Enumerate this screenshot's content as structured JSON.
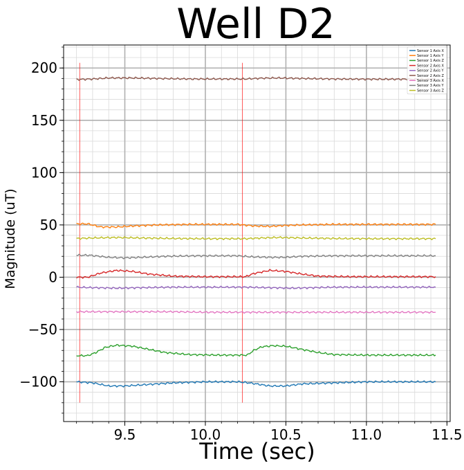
{
  "chart_data": {
    "type": "line",
    "title": "Well D2",
    "xlabel": "Time (sec)",
    "ylabel": "Magnitude (uT)",
    "xlim": [
      9.12,
      11.52
    ],
    "ylim": [
      -138,
      222
    ],
    "x_ticks": [
      9.5,
      10.0,
      10.5,
      11.0,
      11.5
    ],
    "x_tick_labels": [
      "9.5",
      "10.0",
      "10.5",
      "11.0",
      "11.5"
    ],
    "y_ticks": [
      -100,
      -50,
      0,
      50,
      100,
      150,
      200
    ],
    "y_tick_labels": [
      "−100",
      "−50",
      "0",
      "50",
      "100",
      "150",
      "200"
    ],
    "grid": true,
    "legend_position": "top-right",
    "vlines": [
      {
        "x": 9.22,
        "ymin": -120,
        "ymax": 205,
        "color": "#ff0000"
      },
      {
        "x": 10.23,
        "ymin": -120,
        "ymax": 205,
        "color": "#ff0000"
      }
    ],
    "series": [
      {
        "name": "Sensor 1 Axis X",
        "color": "#1f77b4",
        "x": [
          9.2,
          9.3,
          9.4,
          9.5,
          9.6,
          9.8,
          10.0,
          10.2,
          10.27,
          10.4,
          10.5,
          10.6,
          10.8,
          11.0,
          11.2,
          11.43
        ],
        "y": [
          -100,
          -101,
          -104,
          -104,
          -103,
          -101,
          -100,
          -100,
          -101,
          -104,
          -104,
          -102,
          -101,
          -100,
          -100,
          -100
        ]
      },
      {
        "name": "Sensor 1 Axis Y",
        "color": "#ff7f0e",
        "x": [
          9.2,
          9.27,
          9.35,
          9.45,
          9.55,
          9.7,
          9.9,
          10.2,
          10.3,
          10.4,
          10.5,
          10.6,
          10.8,
          11.0,
          11.2,
          11.43
        ],
        "y": [
          51,
          51,
          48,
          48,
          49,
          50,
          50.5,
          50.5,
          49,
          48.5,
          49.5,
          50,
          50.5,
          50.5,
          50.5,
          50.5
        ]
      },
      {
        "name": "Sensor 1 Axis Z",
        "color": "#2ca02c",
        "x": [
          9.2,
          9.27,
          9.32,
          9.38,
          9.45,
          9.55,
          9.65,
          9.75,
          9.9,
          10.1,
          10.26,
          10.3,
          10.35,
          10.42,
          10.5,
          10.6,
          10.7,
          10.8,
          11.0,
          11.2,
          11.43
        ],
        "y": [
          -75,
          -75,
          -72,
          -67,
          -65,
          -66,
          -69,
          -72,
          -74,
          -74.5,
          -74.5,
          -70,
          -66.5,
          -65.5,
          -66,
          -69,
          -72,
          -74,
          -74.5,
          -74.5,
          -74.5
        ]
      },
      {
        "name": "Sensor 2 Axis X",
        "color": "#d62728",
        "x": [
          9.2,
          9.27,
          9.35,
          9.45,
          9.55,
          9.65,
          9.8,
          10.0,
          10.25,
          10.3,
          10.4,
          10.5,
          10.6,
          10.7,
          10.9,
          11.1,
          11.43
        ],
        "y": [
          0,
          0,
          4,
          6.5,
          5.5,
          3,
          1,
          0.5,
          0.5,
          3.5,
          6.5,
          5.5,
          3,
          1,
          0.5,
          0.5,
          0.5
        ]
      },
      {
        "name": "Sensor 2 Axis Y",
        "color": "#9467bd",
        "x": [
          9.2,
          9.3,
          9.45,
          9.6,
          9.8,
          10.0,
          10.25,
          10.4,
          10.55,
          10.8,
          11.0,
          11.2,
          11.43
        ],
        "y": [
          -9.5,
          -10,
          -10.5,
          -10,
          -9.5,
          -9.5,
          -9.5,
          -10,
          -10.5,
          -9.5,
          -9.5,
          -9.5,
          -9.5
        ]
      },
      {
        "name": "Sensor 2 Axis Z",
        "color": "#8c564b",
        "x": [
          9.2,
          9.3,
          9.4,
          9.55,
          9.7,
          9.9,
          10.1,
          10.25,
          10.35,
          10.45,
          10.6,
          10.8,
          11.0,
          11.2,
          11.43
        ],
        "y": [
          189,
          189.5,
          190.5,
          190.5,
          190,
          189.5,
          189.5,
          189.5,
          190.3,
          190.5,
          190,
          189.5,
          189.3,
          189.3,
          189.3
        ]
      },
      {
        "name": "Sensor 3 Axis X",
        "color": "#e377c2",
        "x": [
          9.2,
          9.4,
          9.6,
          9.8,
          10.0,
          10.2,
          10.4,
          10.6,
          10.8,
          11.0,
          11.2,
          11.43
        ],
        "y": [
          -33,
          -33,
          -33,
          -33,
          -33.5,
          -33.5,
          -33.5,
          -33.5,
          -33.5,
          -33.5,
          -33.5,
          -33.5
        ]
      },
      {
        "name": "Sensor 3 Axis Y",
        "color": "#7f7f7f",
        "x": [
          9.2,
          9.28,
          9.4,
          9.5,
          9.6,
          9.75,
          9.95,
          10.2,
          10.28,
          10.4,
          10.5,
          10.6,
          10.8,
          11.0,
          11.2,
          11.43
        ],
        "y": [
          21,
          21,
          19,
          18.5,
          19,
          20,
          20.5,
          20.5,
          19.5,
          19,
          19,
          20,
          20.5,
          20.5,
          20.5,
          20.5
        ]
      },
      {
        "name": "Sensor 3 Axis Z",
        "color": "#bcbd22",
        "x": [
          9.2,
          9.3,
          9.45,
          9.6,
          9.8,
          10.0,
          10.25,
          10.35,
          10.45,
          10.6,
          10.8,
          11.0,
          11.2,
          11.43
        ],
        "y": [
          37,
          37.5,
          38,
          37.5,
          37,
          36.8,
          36.8,
          37.5,
          38,
          37.5,
          37,
          36.8,
          36.8,
          36.8
        ]
      }
    ]
  }
}
